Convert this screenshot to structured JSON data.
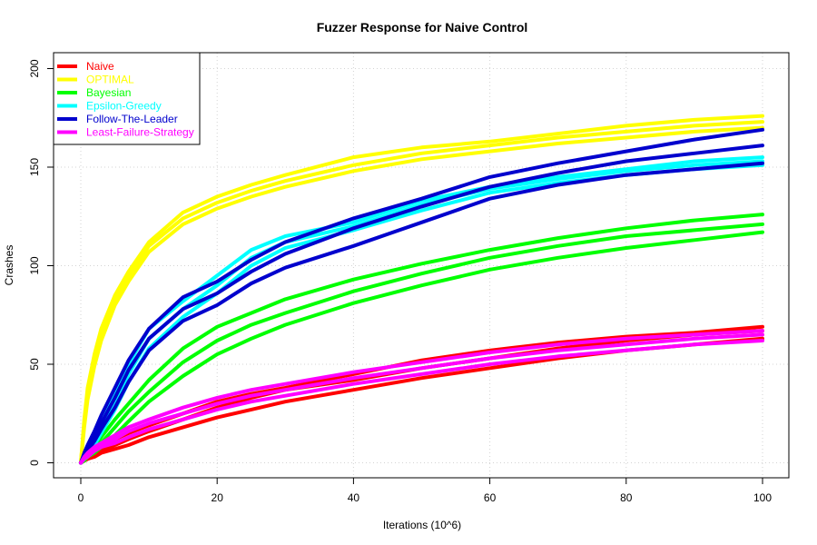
{
  "chart_data": {
    "type": "line",
    "title": "Fuzzer Response for Naive Control",
    "xlabel": "Iterations (10^6)",
    "ylabel": "Crashes",
    "xlim": [
      0,
      100
    ],
    "ylim": [
      0,
      200
    ],
    "xticks": [
      0,
      20,
      40,
      60,
      80,
      100
    ],
    "yticks": [
      0,
      50,
      100,
      150,
      200
    ],
    "grid": true,
    "legend_position": "top-left",
    "x": [
      0,
      0.5,
      1,
      2,
      3,
      5,
      7,
      10,
      15,
      20,
      25,
      30,
      40,
      50,
      60,
      70,
      80,
      90,
      100
    ],
    "series": [
      {
        "name": "Naive",
        "color": "#ff0000",
        "runs": [
          [
            0,
            2,
            3,
            6,
            8,
            12,
            15,
            19,
            25,
            31,
            35,
            38,
            45,
            52,
            57,
            61,
            64,
            66,
            69
          ],
          [
            0,
            1,
            2,
            4,
            6,
            9,
            12,
            16,
            22,
            28,
            33,
            37,
            42,
            48,
            53,
            58,
            62,
            65,
            67
          ],
          [
            0,
            1,
            2,
            3,
            5,
            7,
            9,
            13,
            18,
            23,
            27,
            31,
            37,
            43,
            48,
            53,
            57,
            60,
            63
          ]
        ]
      },
      {
        "name": "OPTIMAL",
        "color": "#ffff00",
        "runs": [
          [
            0,
            22,
            38,
            55,
            68,
            85,
            97,
            112,
            127,
            135,
            141,
            146,
            155,
            160,
            163,
            167,
            171,
            174,
            176
          ],
          [
            0,
            20,
            35,
            52,
            65,
            83,
            95,
            110,
            124,
            132,
            138,
            143,
            151,
            157,
            161,
            165,
            168,
            171,
            173
          ],
          [
            0,
            18,
            32,
            49,
            62,
            80,
            92,
            107,
            121,
            129,
            135,
            140,
            148,
            154,
            158,
            162,
            165,
            168,
            170
          ]
        ]
      },
      {
        "name": "Bayesian",
        "color": "#00ff00",
        "runs": [
          [
            0,
            2,
            4,
            8,
            13,
            22,
            30,
            42,
            58,
            69,
            76,
            83,
            93,
            101,
            108,
            114,
            119,
            123,
            126
          ],
          [
            0,
            2,
            3,
            6,
            10,
            18,
            26,
            36,
            51,
            62,
            70,
            76,
            87,
            96,
            104,
            110,
            115,
            118,
            121
          ],
          [
            0,
            1,
            3,
            5,
            8,
            14,
            21,
            31,
            44,
            55,
            63,
            70,
            81,
            90,
            98,
            104,
            109,
            113,
            117
          ]
        ]
      },
      {
        "name": "Epsilon-Greedy",
        "color": "#00ffff",
        "runs": [
          [
            0,
            3,
            6,
            12,
            20,
            34,
            50,
            68,
            82,
            95,
            108,
            115,
            122,
            133,
            140,
            145,
            149,
            153,
            155
          ],
          [
            0,
            2,
            5,
            10,
            17,
            30,
            45,
            63,
            78,
            90,
            104,
            112,
            120,
            131,
            139,
            144,
            148,
            151,
            153
          ],
          [
            0,
            2,
            4,
            9,
            15,
            27,
            41,
            58,
            74,
            86,
            100,
            109,
            118,
            128,
            137,
            142,
            146,
            149,
            151
          ]
        ]
      },
      {
        "name": "Follow-The-Leader",
        "color": "#0000cd",
        "runs": [
          [
            0,
            5,
            9,
            16,
            24,
            38,
            52,
            68,
            84,
            92,
            103,
            112,
            124,
            134,
            145,
            152,
            158,
            164,
            169
          ],
          [
            0,
            4,
            7,
            13,
            20,
            33,
            47,
            63,
            78,
            86,
            97,
            106,
            119,
            130,
            140,
            147,
            153,
            157,
            161
          ],
          [
            0,
            3,
            6,
            11,
            17,
            28,
            41,
            57,
            72,
            80,
            91,
            99,
            110,
            122,
            134,
            141,
            146,
            149,
            152
          ]
        ]
      },
      {
        "name": "Least-Failure-Strategy",
        "color": "#ff00ff",
        "runs": [
          [
            0,
            3,
            5,
            8,
            10,
            14,
            18,
            22,
            28,
            33,
            37,
            40,
            46,
            51,
            56,
            60,
            63,
            65,
            67
          ],
          [
            0,
            2,
            4,
            7,
            9,
            12,
            16,
            20,
            25,
            30,
            34,
            37,
            43,
            48,
            53,
            57,
            60,
            63,
            65
          ],
          [
            0,
            2,
            3,
            6,
            8,
            10,
            13,
            17,
            22,
            27,
            31,
            34,
            40,
            45,
            50,
            54,
            57,
            60,
            62
          ]
        ]
      }
    ]
  }
}
